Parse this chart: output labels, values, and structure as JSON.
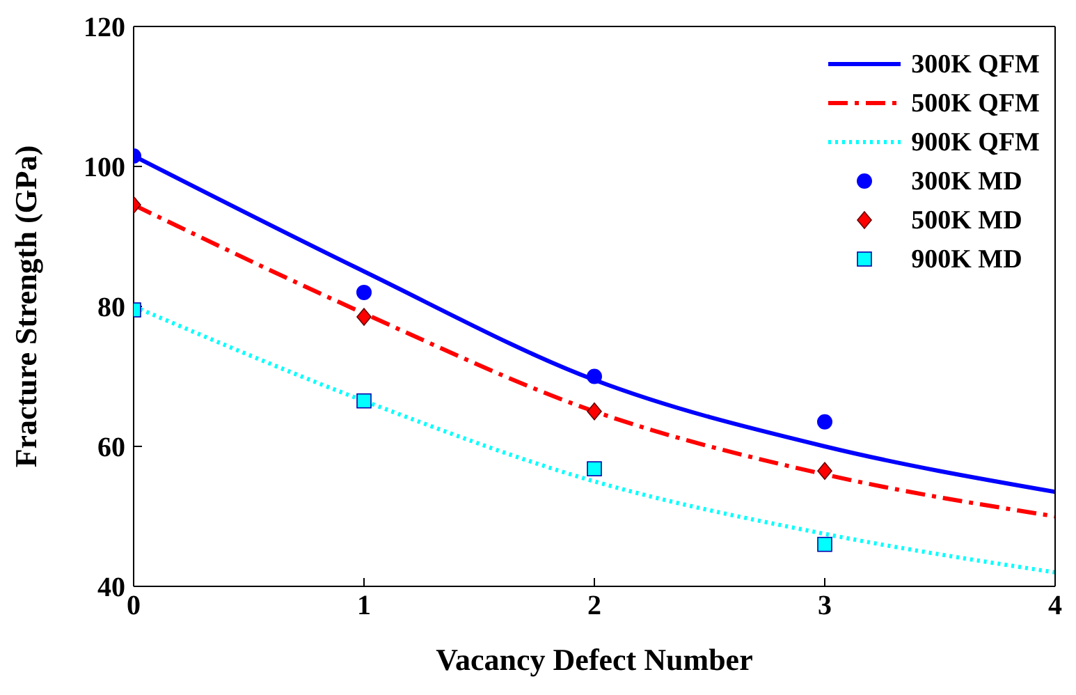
{
  "chart_data": {
    "type": "line",
    "xlabel": "Vacancy Defect Number",
    "ylabel": "Fracture Strength (GPa)",
    "xlim": [
      0,
      4
    ],
    "xticks": [
      0,
      1,
      2,
      3,
      4
    ],
    "ylim": [
      40,
      120
    ],
    "yticks": [
      40,
      60,
      80,
      100,
      120
    ],
    "legend": "top right",
    "series": [
      {
        "name": "300K QFM",
        "color": "#0000ff",
        "line_style": "solid",
        "marker": "none",
        "x": [
          0,
          1,
          2,
          3,
          4
        ],
        "values": [
          101.5,
          85,
          69.5,
          60,
          53.5
        ]
      },
      {
        "name": "500K QFM",
        "color": "#ff0000",
        "line_style": "dashed",
        "marker": "none",
        "x": [
          0,
          1,
          2,
          3,
          4
        ],
        "values": [
          94.5,
          79,
          65,
          56,
          50
        ]
      },
      {
        "name": "900K QFM",
        "color": "#00ffff",
        "line_style": "dotted",
        "marker": "none",
        "x": [
          0,
          1,
          2,
          3,
          4
        ],
        "values": [
          80,
          66.5,
          55,
          47.5,
          42
        ]
      },
      {
        "name": "300K MD",
        "type": "scatter",
        "color": "#0000ff",
        "marker": "circle",
        "x": [
          0,
          1,
          2,
          3
        ],
        "values": [
          101.5,
          82,
          70,
          63.5
        ]
      },
      {
        "name": "500K MD",
        "type": "scatter",
        "color": "#ff0000",
        "marker": "diamond",
        "x": [
          0,
          1,
          2,
          3
        ],
        "values": [
          94.5,
          78.5,
          65,
          56.5
        ]
      },
      {
        "name": "900K MD",
        "type": "scatter",
        "color": "#00ffff",
        "marker": "square",
        "x": [
          0,
          1,
          2,
          3
        ],
        "values": [
          79.5,
          66.5,
          56.8,
          46
        ]
      }
    ]
  }
}
